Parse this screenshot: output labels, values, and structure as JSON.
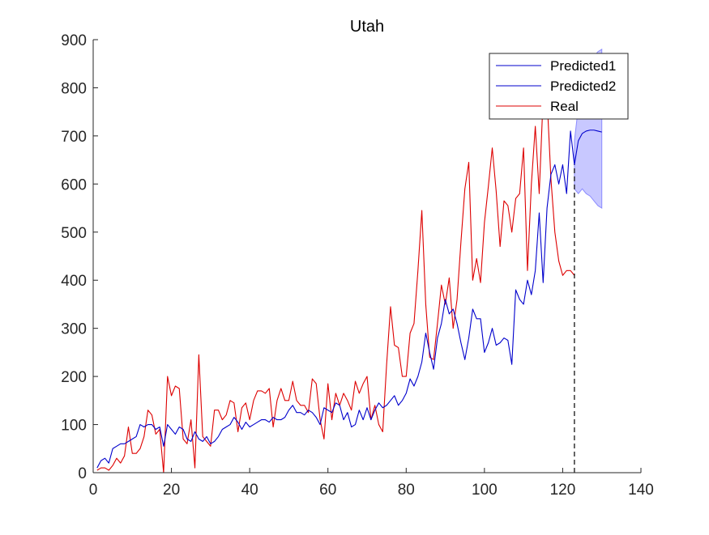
{
  "chart_data": {
    "type": "line",
    "title": "Utah",
    "xlabel": "",
    "ylabel": "",
    "xlim": [
      0,
      140
    ],
    "ylim": [
      0,
      900
    ],
    "xticks": [
      0,
      20,
      40,
      60,
      80,
      100,
      120,
      140
    ],
    "yticks": [
      0,
      100,
      200,
      300,
      400,
      500,
      600,
      700,
      800,
      900
    ],
    "grid": false,
    "legend_position": "top-right",
    "forecast_start_marker_x": 123,
    "colors": {
      "predicted": "#0000cc",
      "real": "#dd0000",
      "band": "#c8c8ff",
      "band_edge": "#8c8cff",
      "axis": "#262626"
    },
    "series": [
      {
        "name": "Predicted1",
        "x": [
          1,
          2,
          3,
          4,
          5,
          6,
          7,
          8,
          9,
          10,
          11,
          12,
          13,
          14,
          15,
          16,
          17,
          18,
          19,
          20,
          21,
          22,
          23,
          24,
          25,
          26,
          27,
          28,
          29,
          30,
          31,
          32,
          33,
          34,
          35,
          36,
          37,
          38,
          39,
          40,
          41,
          42,
          43,
          44,
          45,
          46,
          47,
          48,
          49,
          50,
          51,
          52,
          53,
          54,
          55,
          56,
          57,
          58,
          59,
          60,
          61,
          62,
          63,
          64,
          65,
          66,
          67,
          68,
          69,
          70,
          71,
          72,
          73,
          74,
          75,
          76,
          77,
          78,
          79,
          80,
          81,
          82,
          83,
          84,
          85,
          86,
          87,
          88,
          89,
          90,
          91,
          92,
          93,
          94,
          95,
          96,
          97,
          98,
          99,
          100,
          101,
          102,
          103,
          104,
          105,
          106,
          107,
          108,
          109,
          110,
          111,
          112,
          113,
          114,
          115,
          116,
          117,
          118,
          119,
          120,
          121,
          122,
          123
        ],
        "values": [
          10,
          25,
          30,
          20,
          50,
          55,
          60,
          60,
          65,
          70,
          75,
          100,
          95,
          100,
          100,
          90,
          95,
          55,
          100,
          90,
          80,
          95,
          90,
          70,
          65,
          85,
          70,
          65,
          75,
          60,
          65,
          75,
          90,
          95,
          100,
          115,
          105,
          90,
          105,
          95,
          100,
          105,
          110,
          110,
          105,
          115,
          110,
          110,
          115,
          130,
          140,
          125,
          125,
          120,
          130,
          125,
          115,
          100,
          135,
          130,
          125,
          145,
          140,
          110,
          125,
          95,
          100,
          130,
          110,
          135,
          110,
          130,
          145,
          135,
          140,
          150,
          160,
          140,
          150,
          165,
          195,
          180,
          200,
          230,
          290,
          250,
          215,
          280,
          310,
          360,
          330,
          340,
          310,
          270,
          235,
          280,
          340,
          320,
          320,
          250,
          270,
          300,
          265,
          270,
          280,
          275,
          225,
          380,
          360,
          350,
          400,
          370,
          420,
          540,
          395,
          550,
          620,
          640,
          600,
          640,
          580,
          710,
          640
        ]
      },
      {
        "name": "Predicted2",
        "x": [
          123,
          124,
          125,
          126,
          127,
          128,
          129,
          130
        ],
        "values": [
          640,
          690,
          705,
          710,
          712,
          712,
          710,
          708
        ]
      },
      {
        "name": "Real",
        "x": [
          1,
          2,
          3,
          4,
          5,
          6,
          7,
          8,
          9,
          10,
          11,
          12,
          13,
          14,
          15,
          16,
          17,
          18,
          19,
          20,
          21,
          22,
          23,
          24,
          25,
          26,
          27,
          28,
          29,
          30,
          31,
          32,
          33,
          34,
          35,
          36,
          37,
          38,
          39,
          40,
          41,
          42,
          43,
          44,
          45,
          46,
          47,
          48,
          49,
          50,
          51,
          52,
          53,
          54,
          55,
          56,
          57,
          58,
          59,
          60,
          61,
          62,
          63,
          64,
          65,
          66,
          67,
          68,
          69,
          70,
          71,
          72,
          73,
          74,
          75,
          76,
          77,
          78,
          79,
          80,
          81,
          82,
          83,
          84,
          85,
          86,
          87,
          88,
          89,
          90,
          91,
          92,
          93,
          94,
          95,
          96,
          97,
          98,
          99,
          100,
          101,
          102,
          103,
          104,
          105,
          106,
          107,
          108,
          109,
          110,
          111,
          112,
          113,
          114,
          115,
          116,
          117,
          118,
          119,
          120,
          121,
          122,
          123
        ],
        "values": [
          5,
          10,
          10,
          5,
          15,
          30,
          20,
          35,
          95,
          40,
          40,
          50,
          75,
          130,
          120,
          80,
          90,
          0,
          200,
          160,
          180,
          175,
          70,
          60,
          110,
          10,
          245,
          75,
          65,
          55,
          130,
          130,
          110,
          120,
          150,
          145,
          85,
          135,
          145,
          110,
          150,
          170,
          170,
          165,
          175,
          95,
          150,
          175,
          150,
          150,
          190,
          150,
          140,
          140,
          125,
          195,
          185,
          110,
          70,
          185,
          110,
          165,
          140,
          165,
          150,
          130,
          190,
          165,
          185,
          200,
          110,
          140,
          100,
          85,
          225,
          345,
          265,
          260,
          200,
          200,
          290,
          310,
          420,
          545,
          350,
          240,
          235,
          310,
          390,
          350,
          405,
          300,
          360,
          480,
          590,
          645,
          400,
          445,
          395,
          520,
          595,
          675,
          585,
          470,
          565,
          555,
          500,
          570,
          580,
          675,
          420,
          600,
          720,
          580,
          780,
          780,
          610,
          500,
          440,
          410,
          420,
          420,
          410
        ]
      }
    ],
    "confidence_band": {
      "x": [
        123,
        124,
        125,
        126,
        127,
        128,
        129,
        130
      ],
      "upper": [
        690,
        760,
        800,
        830,
        850,
        865,
        875,
        880
      ],
      "lower": [
        590,
        580,
        590,
        580,
        575,
        565,
        555,
        550
      ]
    }
  }
}
